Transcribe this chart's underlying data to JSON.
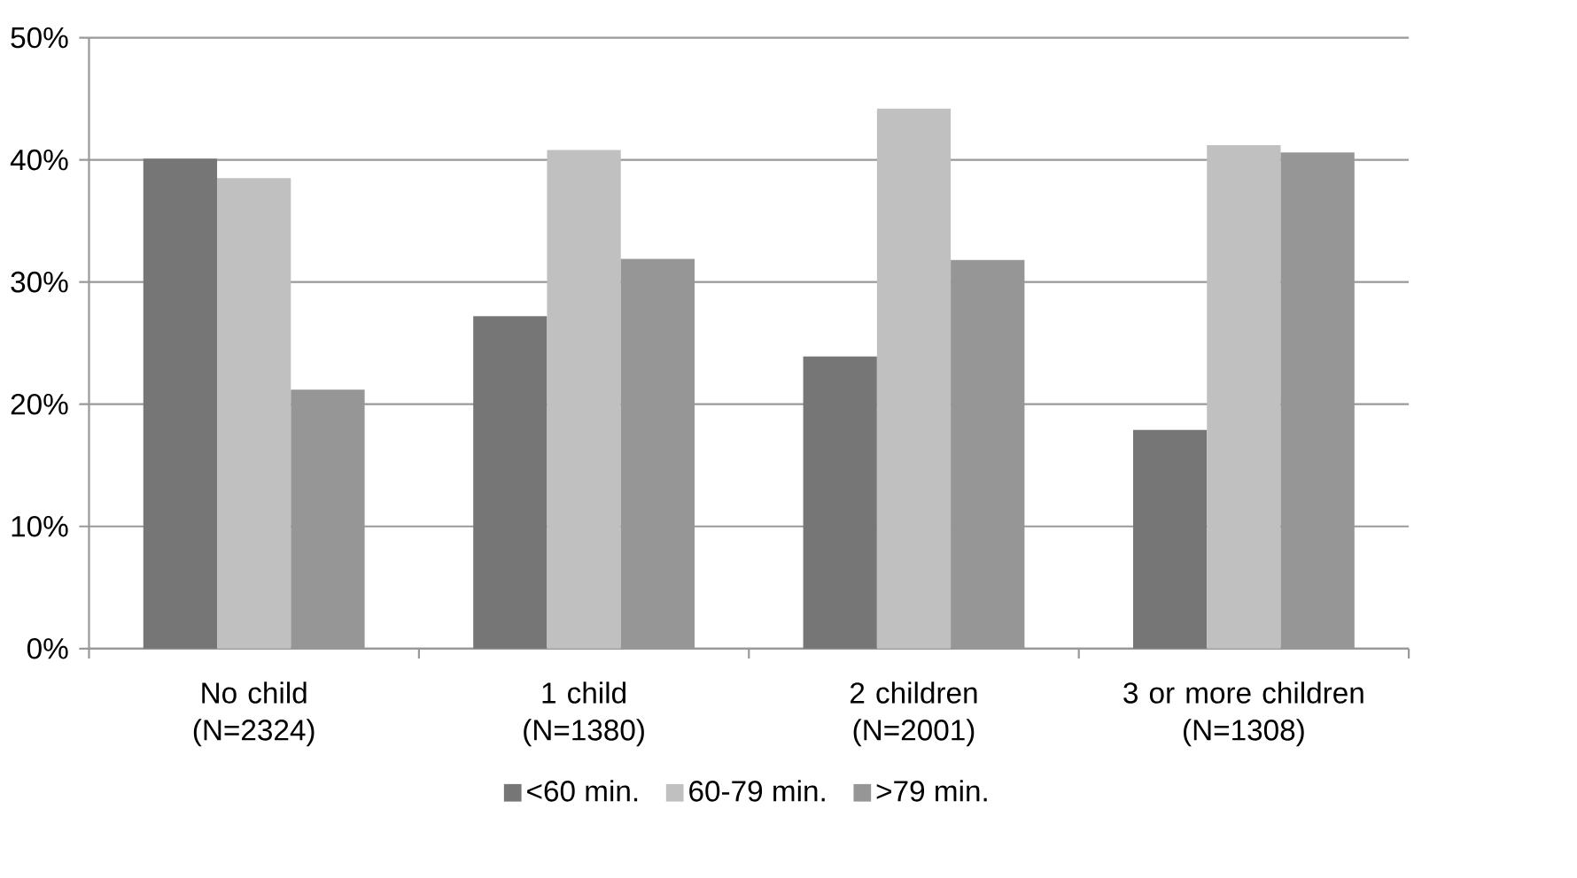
{
  "chart_data": {
    "type": "bar",
    "categories": [
      "No child\n(N=2324)",
      "1 child\n(N=1380)",
      "2 children\n(N=2001)",
      "3 or more children\n(N=1308)"
    ],
    "series": [
      {
        "name": "<60 min.",
        "color": "#767676",
        "values": [
          40.1,
          27.2,
          23.9,
          17.9
        ]
      },
      {
        "name": "60-79 min.",
        "color": "#c0c0c0",
        "values": [
          38.5,
          40.8,
          44.2,
          41.2
        ]
      },
      {
        "name": ">79 min.",
        "color": "#969696",
        "values": [
          21.2,
          31.9,
          31.8,
          40.6
        ]
      }
    ],
    "ylim": [
      0,
      50
    ],
    "yticks": [
      {
        "value": 0,
        "label": "0%"
      },
      {
        "value": 10,
        "label": "10%"
      },
      {
        "value": 20,
        "label": "20%"
      },
      {
        "value": 30,
        "label": "30%"
      },
      {
        "value": 40,
        "label": "40%"
      },
      {
        "value": 50,
        "label": "50%"
      }
    ],
    "grid": "y",
    "legend": "bottom"
  }
}
